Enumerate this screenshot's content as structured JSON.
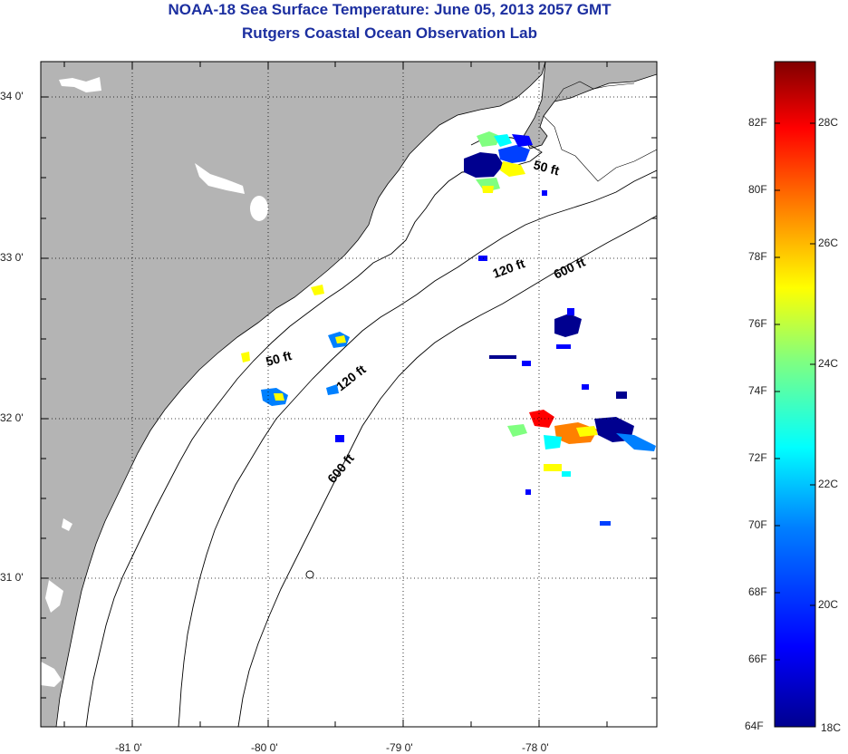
{
  "title": {
    "line1": "NOAA-18 Sea Surface Temperature:  June 05, 2013 2057 GMT",
    "line2": "Rutgers Coastal Ocean Observation Lab"
  },
  "map": {
    "lon_labels": [
      "-81 0'",
      "-80 0'",
      "-79 0'",
      "-78 0'"
    ],
    "lat_labels": [
      "34 0'",
      "33 0'",
      "32 0'",
      "31 0'"
    ],
    "contours": {
      "c50_a": "50 ft",
      "c50_b": "50 ft",
      "c120_a": "120 ft",
      "c120_b": "120 ft",
      "c600_a": "600 ft",
      "c600_b": "600 ft"
    },
    "colors": {
      "land": "#b4b4b4",
      "ocean": "#ffffff",
      "grid": "#000000",
      "contour": "#000000"
    }
  },
  "colorbar": {
    "fahrenheit": [
      "82F",
      "80F",
      "78F",
      "76F",
      "74F",
      "72F",
      "70F",
      "68F",
      "66F",
      "64F"
    ],
    "celsius": [
      "28C",
      "26C",
      "24C",
      "22C",
      "20C",
      "18C"
    ],
    "colors": [
      "#00008f",
      "#0000ff",
      "#0080ff",
      "#00ffff",
      "#80ff80",
      "#ffff00",
      "#ff8000",
      "#ff0000",
      "#800000"
    ]
  }
}
